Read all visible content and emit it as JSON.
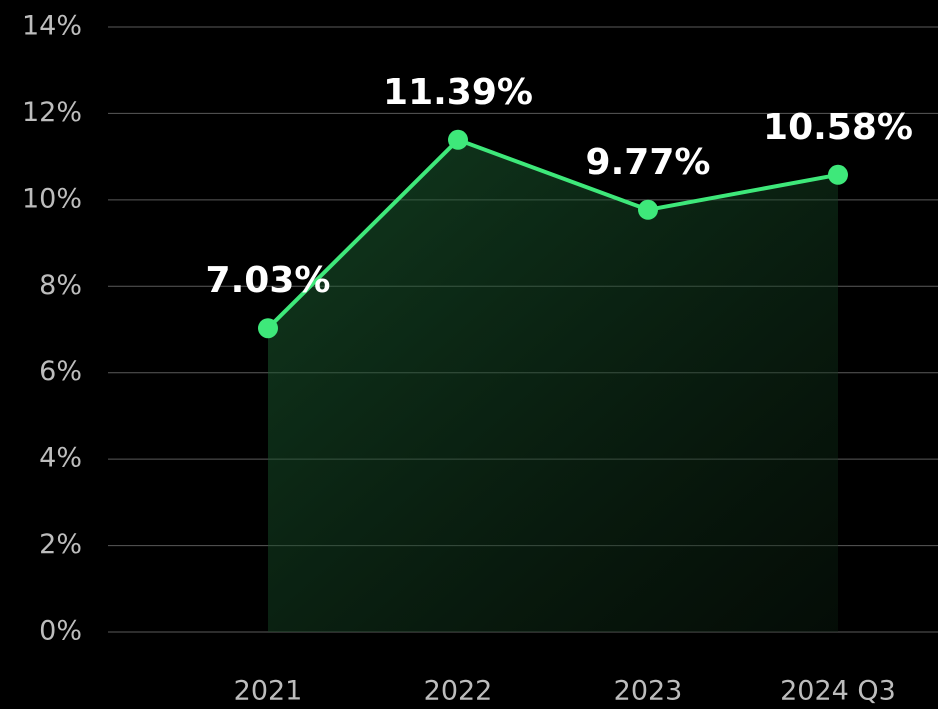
{
  "chart_data": {
    "type": "line",
    "categories": [
      "2021",
      "2022",
      "2023",
      "2024 Q3"
    ],
    "values": [
      7.03,
      11.39,
      9.77,
      10.58
    ],
    "value_labels": [
      "7.03%",
      "11.39%",
      "9.77%",
      "10.58%"
    ],
    "color": "#3ee87a",
    "area": true,
    "ylim": [
      0,
      14
    ],
    "yticks": [
      {
        "value": 0,
        "label": "0%"
      },
      {
        "value": 2,
        "label": "2%"
      },
      {
        "value": 4,
        "label": "4%"
      },
      {
        "value": 6,
        "label": "6%"
      },
      {
        "value": 8,
        "label": "8%"
      },
      {
        "value": 10,
        "label": "10%"
      },
      {
        "value": 12,
        "label": "12%"
      },
      {
        "value": 14,
        "label": "14%"
      }
    ],
    "grid": true
  }
}
